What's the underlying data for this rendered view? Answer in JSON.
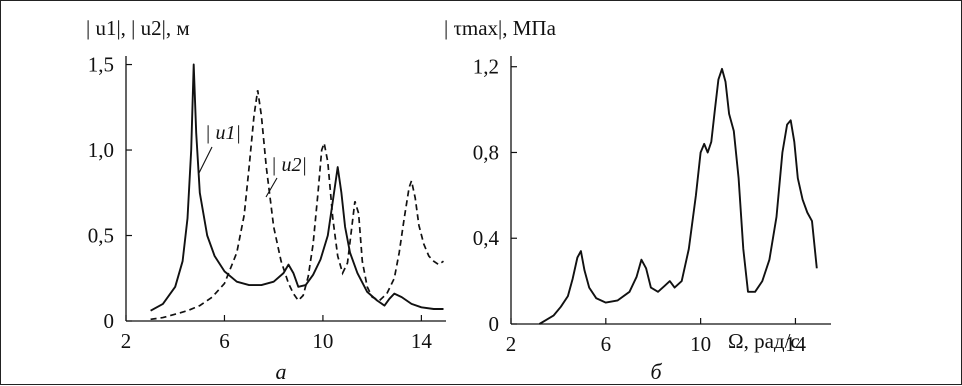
{
  "chart_data": [
    {
      "type": "line",
      "title": "",
      "ylabel": "| u1|, | u2|, м",
      "xlabel": "",
      "panel_label": "а",
      "xlim": [
        2,
        15
      ],
      "ylim": [
        0,
        1.55
      ],
      "xticks": [
        "2",
        "6",
        "10",
        "14"
      ],
      "yticks": [
        "0",
        "0,5",
        "1,0",
        "1,5"
      ],
      "grid": false,
      "series": [
        {
          "name": "| u1|",
          "style": "solid",
          "x": [
            3.0,
            3.5,
            4.0,
            4.3,
            4.5,
            4.65,
            4.75,
            4.85,
            5.0,
            5.3,
            5.6,
            6.0,
            6.5,
            7.0,
            7.5,
            8.0,
            8.4,
            8.6,
            8.8,
            9.0,
            9.3,
            9.6,
            9.9,
            10.2,
            10.4,
            10.6,
            10.75,
            10.9,
            11.1,
            11.4,
            11.8,
            12.2,
            12.5,
            12.7,
            12.9,
            13.2,
            13.6,
            14.0,
            14.5,
            14.9
          ],
          "y": [
            0.06,
            0.1,
            0.2,
            0.35,
            0.6,
            1.0,
            1.5,
            1.1,
            0.75,
            0.5,
            0.38,
            0.29,
            0.23,
            0.21,
            0.21,
            0.23,
            0.28,
            0.33,
            0.28,
            0.2,
            0.21,
            0.27,
            0.36,
            0.5,
            0.7,
            0.9,
            0.75,
            0.55,
            0.4,
            0.28,
            0.17,
            0.12,
            0.09,
            0.13,
            0.16,
            0.14,
            0.1,
            0.08,
            0.07,
            0.07
          ]
        },
        {
          "name": "| u2|",
          "style": "dashed",
          "x": [
            3.0,
            3.5,
            4.0,
            4.5,
            5.0,
            5.5,
            6.0,
            6.5,
            6.8,
            7.0,
            7.2,
            7.35,
            7.5,
            7.7,
            8.0,
            8.3,
            8.6,
            8.8,
            9.0,
            9.2,
            9.4,
            9.6,
            9.8,
            9.95,
            10.05,
            10.2,
            10.4,
            10.6,
            10.8,
            11.0,
            11.15,
            11.3,
            11.45,
            11.6,
            11.8,
            12.0,
            12.3,
            12.6,
            12.9,
            13.1,
            13.3,
            13.5,
            13.6,
            13.75,
            13.9,
            14.1,
            14.3,
            14.5,
            14.7,
            14.9
          ],
          "y": [
            0.01,
            0.02,
            0.04,
            0.06,
            0.09,
            0.14,
            0.22,
            0.4,
            0.62,
            0.9,
            1.2,
            1.35,
            1.2,
            0.9,
            0.55,
            0.35,
            0.22,
            0.16,
            0.12,
            0.15,
            0.26,
            0.45,
            0.75,
            1.0,
            1.04,
            0.93,
            0.6,
            0.38,
            0.28,
            0.34,
            0.52,
            0.7,
            0.63,
            0.35,
            0.2,
            0.14,
            0.12,
            0.16,
            0.25,
            0.4,
            0.6,
            0.78,
            0.82,
            0.72,
            0.56,
            0.45,
            0.38,
            0.35,
            0.33,
            0.35
          ]
        }
      ]
    },
    {
      "type": "line",
      "title": "",
      "ylabel": "| τmax|, МПа",
      "xlabel": "Ω, рад/с",
      "panel_label": "б",
      "xlim": [
        2,
        15.5
      ],
      "ylim": [
        0,
        1.25
      ],
      "xticks": [
        "2",
        "6",
        "10",
        "14"
      ],
      "yticks": [
        "0",
        "0,4",
        "0,8",
        "1,2"
      ],
      "grid": false,
      "series": [
        {
          "name": "",
          "style": "solid",
          "x": [
            3.2,
            3.5,
            3.8,
            4.1,
            4.4,
            4.6,
            4.8,
            4.95,
            5.1,
            5.3,
            5.6,
            6.0,
            6.5,
            7.0,
            7.3,
            7.5,
            7.7,
            7.9,
            8.2,
            8.5,
            8.7,
            8.9,
            9.2,
            9.5,
            9.8,
            10.0,
            10.15,
            10.3,
            10.45,
            10.6,
            10.75,
            10.9,
            11.05,
            11.2,
            11.4,
            11.6,
            11.8,
            12.0,
            12.3,
            12.6,
            12.9,
            13.2,
            13.45,
            13.65,
            13.8,
            13.95,
            14.1,
            14.3,
            14.5,
            14.7,
            14.9
          ],
          "y": [
            0.0,
            0.02,
            0.04,
            0.08,
            0.13,
            0.21,
            0.31,
            0.34,
            0.25,
            0.17,
            0.12,
            0.1,
            0.11,
            0.15,
            0.22,
            0.3,
            0.26,
            0.17,
            0.15,
            0.18,
            0.2,
            0.17,
            0.2,
            0.35,
            0.6,
            0.8,
            0.84,
            0.8,
            0.85,
            1.0,
            1.14,
            1.19,
            1.13,
            0.98,
            0.9,
            0.68,
            0.35,
            0.15,
            0.15,
            0.2,
            0.3,
            0.5,
            0.8,
            0.93,
            0.95,
            0.85,
            0.68,
            0.58,
            0.52,
            0.48,
            0.26
          ]
        }
      ]
    }
  ]
}
